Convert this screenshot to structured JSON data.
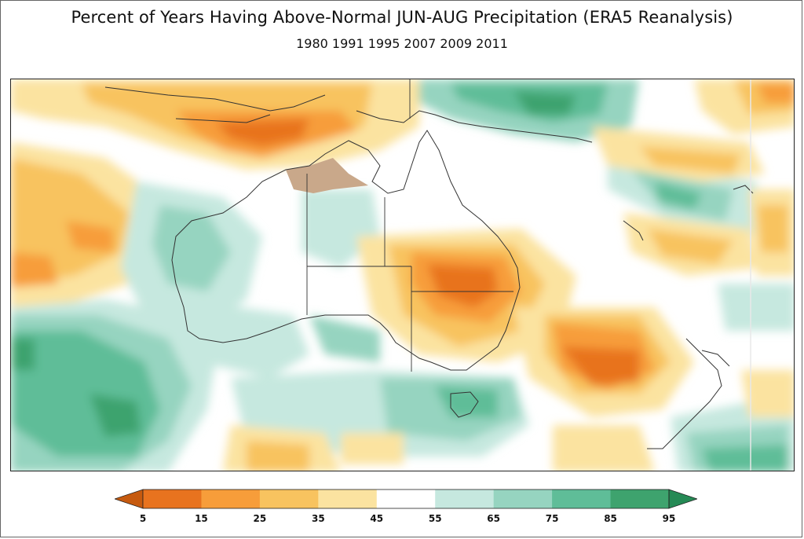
{
  "title": "Percent of Years Having Above-Normal JUN-AUG Precipitation (ERA5 Reanalysis)",
  "subtitle": "1980 1991 1995 2007 2009 2011",
  "colorbar": {
    "ticks": [
      "5",
      "15",
      "25",
      "35",
      "45",
      "55",
      "65",
      "75",
      "85",
      "95"
    ],
    "colors": [
      "#c65a0f",
      "#e8731f",
      "#f79d3a",
      "#f8c35f",
      "#fbe3a0",
      "#ffffff",
      "#c6e8df",
      "#96d4c0",
      "#5fbd98",
      "#3ea36e",
      "#258a55"
    ]
  },
  "map": {
    "region": "Australia and surrounding region",
    "missing_data_color": "#c9a88a"
  }
}
